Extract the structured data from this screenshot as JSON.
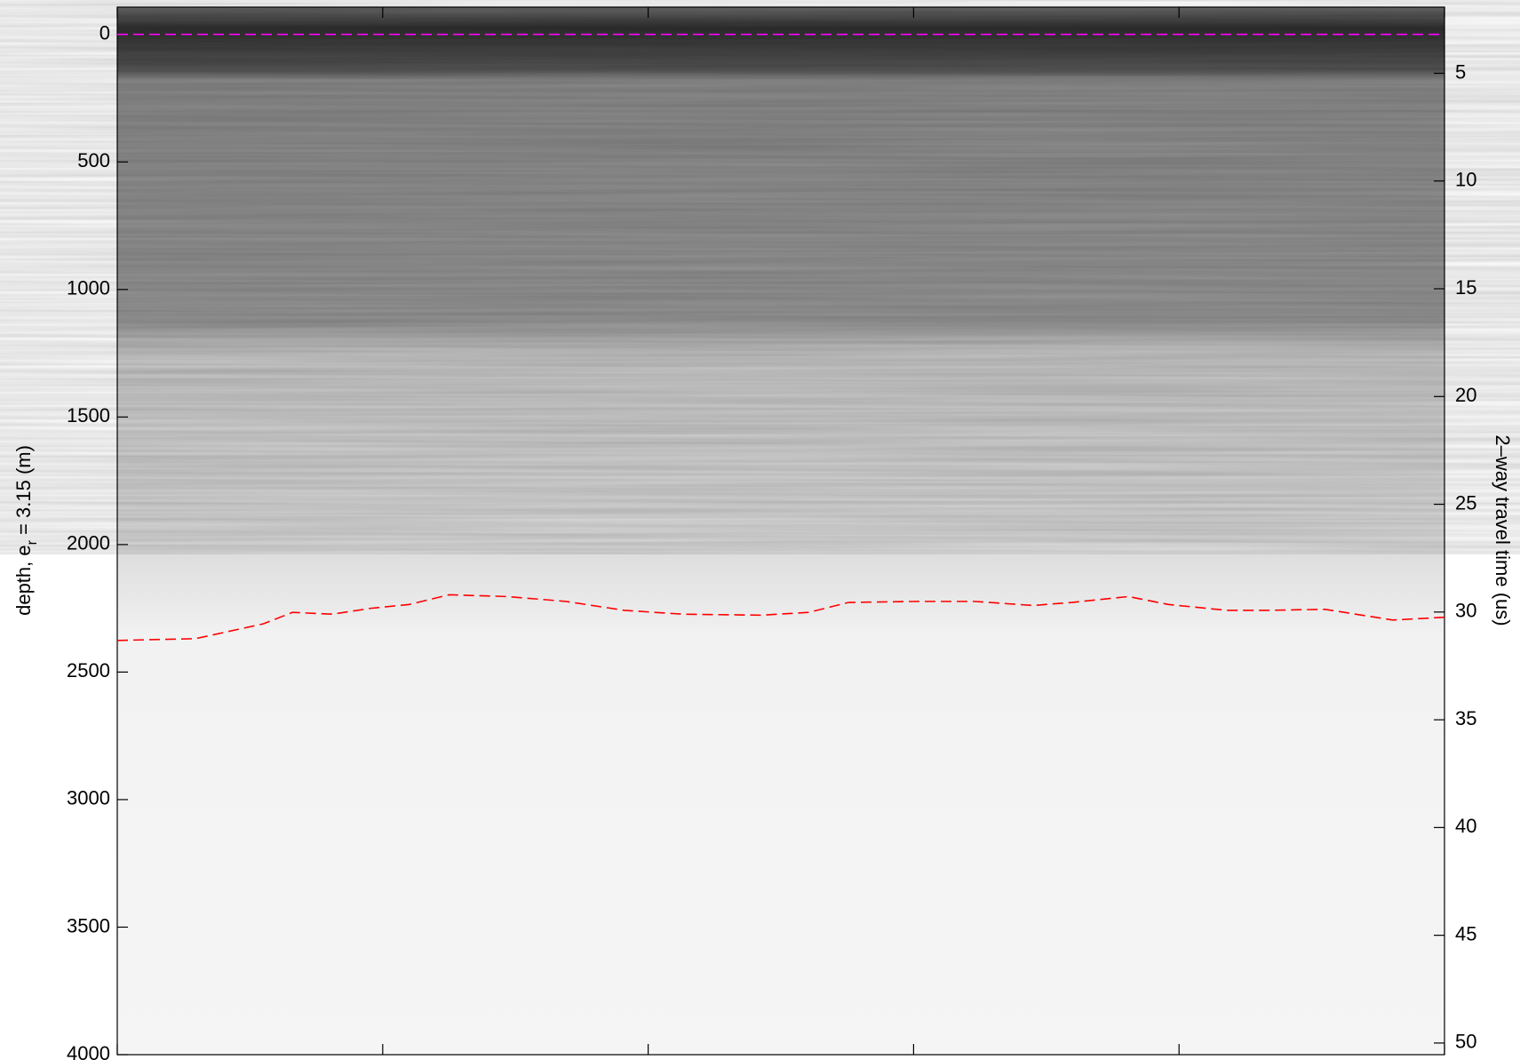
{
  "chart_data": {
    "type": "line",
    "ylabel": "depth, e",
    "ylabel_sub": "r",
    "ylabel_rest": " = 3.15 (m)",
    "y2label": "2–way travel time (us)",
    "ylim": [
      -107,
      4000
    ],
    "y_inverted": true,
    "yticks": [
      0,
      500,
      1000,
      1500,
      2000,
      2500,
      3000,
      3500,
      4000
    ],
    "y2lim": [
      1.93,
      50.54
    ],
    "y2ticks": [
      5,
      10,
      15,
      20,
      25,
      30,
      35,
      40,
      45,
      50
    ],
    "xlim": [
      0,
      100
    ],
    "xticks": [
      0,
      20,
      40,
      60,
      80,
      100
    ],
    "series": [
      {
        "color": "#ff00ff",
        "x": [
          0,
          100
        ],
        "values": [
          0,
          0
        ]
      },
      {
        "color": "#ff0000",
        "x": [
          0,
          5.9,
          11,
          13.2,
          16.2,
          19.1,
          22,
          25,
          29.4,
          33.8,
          38.2,
          42.6,
          48.5,
          52.1,
          55.1,
          60.2,
          64.6,
          69,
          71.9,
          76.2,
          79.2,
          83.6,
          86.6,
          91,
          96.1,
          100
        ],
        "values": [
          2376,
          2369,
          2311,
          2266,
          2273,
          2250,
          2235,
          2197,
          2204,
          2223,
          2258,
          2273,
          2277,
          2266,
          2227,
          2223,
          2223,
          2239,
          2227,
          2204,
          2235,
          2258,
          2258,
          2254,
          2296,
          2285
        ]
      }
    ]
  }
}
